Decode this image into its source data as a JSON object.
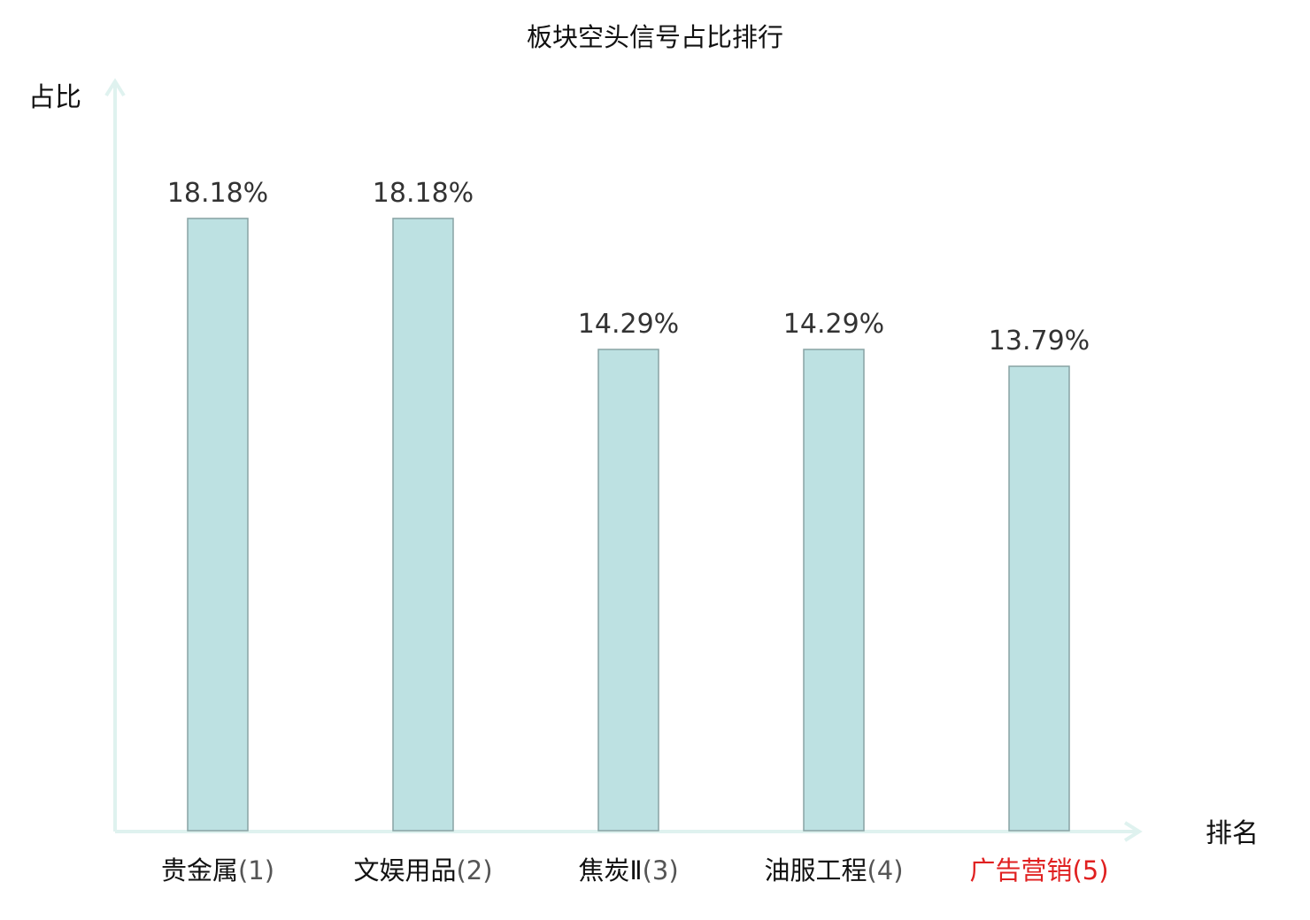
{
  "chart_data": {
    "type": "bar",
    "title": "板块空头信号占比排行",
    "xlabel": "排名",
    "ylabel": "占比",
    "ylim": [
      0,
      0.2
    ],
    "grid": false,
    "categories": [
      {
        "name": "贵金属",
        "rank": "(1)",
        "value": 18.18,
        "label": "18.18%",
        "highlight": false
      },
      {
        "name": "文娱用品",
        "rank": "(2)",
        "value": 18.18,
        "label": "18.18%",
        "highlight": false
      },
      {
        "name": "焦炭Ⅱ",
        "rank": "(3)",
        "value": 14.29,
        "label": "14.29%",
        "highlight": false
      },
      {
        "name": "油服工程",
        "rank": "(4)",
        "value": 14.29,
        "label": "14.29%",
        "highlight": false
      },
      {
        "name": "广告营销",
        "rank": "(5)",
        "value": 13.79,
        "label": "13.79%",
        "highlight": true
      }
    ],
    "colors": {
      "bar_fill": "#bde1e2",
      "bar_stroke": "#88a3a4",
      "axis": "#dff2ef",
      "highlight_text": "#e02020",
      "text": "#111111",
      "rank_text": "#555555"
    }
  }
}
